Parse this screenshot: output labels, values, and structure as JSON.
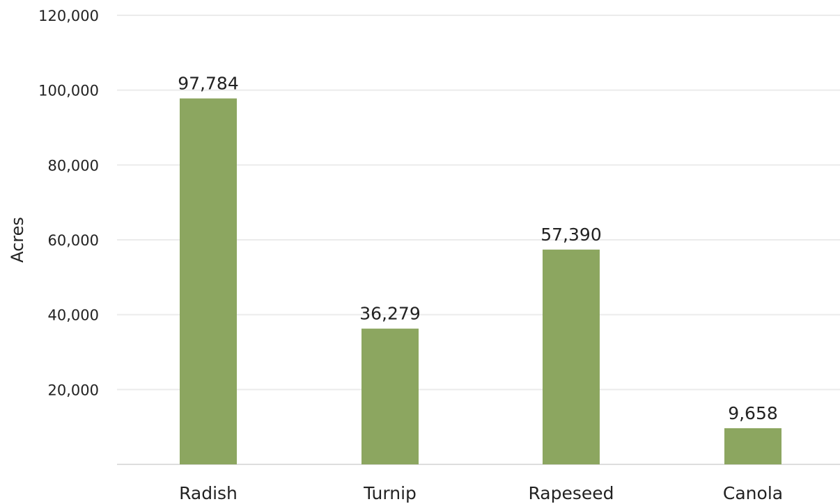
{
  "chart_data": {
    "type": "bar",
    "title": "",
    "xlabel": "",
    "ylabel": "Acres",
    "categories": [
      "Radish",
      "Turnip",
      "Rapeseed",
      "Canola"
    ],
    "values": [
      97784,
      36279,
      57390,
      9658
    ],
    "value_labels": [
      "97,784",
      "36,279",
      "57,390",
      "9,658"
    ],
    "ylim": [
      0,
      120000
    ],
    "yticks": [
      20000,
      40000,
      60000,
      80000,
      100000,
      120000
    ],
    "ytick_labels": [
      "20,000",
      "40,000",
      "60,000",
      "80,000",
      "100,000",
      "120,000"
    ],
    "grid": true,
    "legend": "none",
    "colors": {
      "bar": "#8ca660",
      "grid": "#ebebeb",
      "baseline": "#dddddd",
      "text": "#222222"
    }
  }
}
